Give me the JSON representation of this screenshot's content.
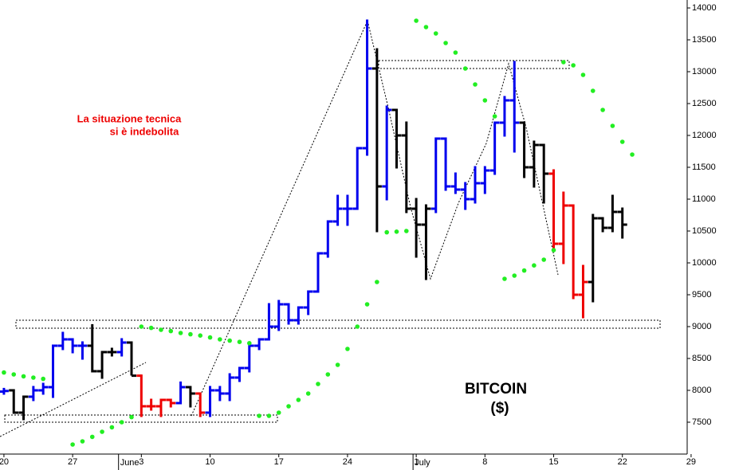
{
  "chart_data": {
    "type": "ohlc",
    "title": "BITCOIN",
    "subtitle": "($)",
    "annotations": [
      "La situazione tecnica",
      "si è indebolita"
    ],
    "ylim": [
      7000,
      14125
    ],
    "yticks": [
      7500,
      8000,
      8500,
      9000,
      9500,
      10000,
      10500,
      11000,
      11500,
      12000,
      12500,
      13000,
      13500,
      14000
    ],
    "xlim": [
      -0.4,
      69.6
    ],
    "xticks": [
      {
        "value": 0,
        "label": "20"
      },
      {
        "value": 7,
        "label": "27"
      },
      {
        "value": 14,
        "label": "3"
      },
      {
        "value": 21,
        "label": "10"
      },
      {
        "value": 28,
        "label": "17"
      },
      {
        "value": 35,
        "label": "24"
      },
      {
        "value": 42,
        "label": "1"
      },
      {
        "value": 49,
        "label": "8"
      },
      {
        "value": 56,
        "label": "15"
      },
      {
        "value": 63,
        "label": "22"
      },
      {
        "value": 70,
        "label": "29"
      }
    ],
    "months": [
      {
        "value": 12,
        "label": "June"
      },
      {
        "value": 42,
        "label": "July"
      }
    ],
    "x": [
      0,
      1,
      2,
      3,
      4,
      5,
      6,
      7,
      8,
      9,
      10,
      11,
      12,
      13,
      14,
      15,
      16,
      17,
      18,
      19,
      20,
      21,
      22,
      23,
      24,
      25,
      26,
      27,
      28,
      29,
      30,
      31,
      32,
      33,
      34,
      35,
      36,
      37,
      38,
      39,
      40,
      41,
      42,
      43,
      44,
      45,
      46,
      47,
      48,
      49,
      50,
      51,
      52,
      53,
      54,
      55,
      56,
      57,
      58,
      59,
      60,
      61,
      62,
      63
    ],
    "open": [
      7980,
      8000,
      7650,
      7900,
      8000,
      8050,
      8700,
      8800,
      8700,
      8700,
      8300,
      8600,
      8600,
      8750,
      8230,
      7750,
      7750,
      7850,
      7800,
      8050,
      7950,
      7650,
      8000,
      7950,
      8200,
      8350,
      8700,
      8800,
      9000,
      9350,
      9100,
      9300,
      9550,
      10150,
      10650,
      10850,
      10850,
      11800,
      13050,
      11200,
      12400,
      12000,
      10850,
      10600,
      10850,
      11950,
      11200,
      11150,
      11000,
      11250,
      11450,
      12200,
      12550,
      12200,
      11500,
      11850,
      11400,
      10300,
      10900,
      9500,
      9700,
      10700,
      10550,
      10800
    ],
    "high": [
      8020,
      8000,
      7900,
      8050,
      8100,
      8700,
      8900,
      8800,
      8750,
      9020,
      8600,
      8650,
      8800,
      8750,
      8230,
      7850,
      7850,
      7850,
      8120,
      8050,
      7950,
      8050,
      8050,
      8250,
      8350,
      8700,
      8800,
      9350,
      9400,
      9350,
      9300,
      9550,
      10150,
      10650,
      11050,
      11050,
      11800,
      13800,
      13350,
      12450,
      12400,
      12200,
      11000,
      10900,
      11950,
      11950,
      11400,
      11250,
      11500,
      11500,
      12200,
      12600,
      13150,
      12200,
      11900,
      11850,
      11450,
      11100,
      10900,
      9950,
      10750,
      10700,
      11050,
      10850
    ],
    "low": [
      7950,
      7650,
      7550,
      7850,
      7950,
      7900,
      8650,
      8600,
      8500,
      8300,
      8200,
      8550,
      8550,
      8250,
      7600,
      7700,
      7600,
      7750,
      7800,
      7750,
      7600,
      7600,
      7850,
      7850,
      8150,
      8300,
      8650,
      8800,
      8950,
      9050,
      9050,
      9200,
      9550,
      10100,
      10600,
      10600,
      10850,
      11700,
      10500,
      11000,
      11500,
      10800,
      10100,
      9750,
      10800,
      11150,
      11100,
      10850,
      10950,
      11100,
      11400,
      12000,
      11750,
      11350,
      11200,
      10950,
      10250,
      10000,
      9450,
      9150,
      9400,
      10500,
      10500,
      10400
    ],
    "close": [
      7990,
      7650,
      7900,
      8000,
      8050,
      8700,
      8800,
      8700,
      8700,
      8300,
      8600,
      8600,
      8750,
      8230,
      7750,
      7750,
      7850,
      7800,
      8050,
      7950,
      7650,
      8000,
      7950,
      8200,
      8350,
      8700,
      8800,
      9000,
      9350,
      9100,
      9300,
      9550,
      10150,
      10650,
      10850,
      10850,
      11800,
      13050,
      11200,
      12400,
      12000,
      10850,
      10600,
      10850,
      11950,
      11200,
      11150,
      11000,
      11250,
      11450,
      12200,
      12550,
      12200,
      11500,
      11850,
      11400,
      10300,
      10900,
      9500,
      9700,
      10700,
      10550,
      10800,
      10600
    ],
    "bar_colors": [
      "#0000ee",
      "#000000",
      "#000000",
      "#0000ee",
      "#0000ee",
      "#0000ee",
      "#0000ee",
      "#0000ee",
      "#0000ee",
      "#000000",
      "#000000",
      "#000000",
      "#0000ee",
      "#000000",
      "#ee0000",
      "#ee0000",
      "#ee0000",
      "#ee0000",
      "#0000ee",
      "#000000",
      "#ee0000",
      "#0000ee",
      "#0000ee",
      "#0000ee",
      "#0000ee",
      "#0000ee",
      "#0000ee",
      "#0000ee",
      "#0000ee",
      "#0000ee",
      "#0000ee",
      "#0000ee",
      "#0000ee",
      "#0000ee",
      "#0000ee",
      "#0000ee",
      "#0000ee",
      "#0000ee",
      "#000000",
      "#0000ee",
      "#000000",
      "#000000",
      "#000000",
      "#000000",
      "#0000ee",
      "#0000ee",
      "#0000ee",
      "#0000ee",
      "#0000ee",
      "#0000ee",
      "#0000ee",
      "#0000ee",
      "#0000ee",
      "#000000",
      "#000000",
      "#000000",
      "#ee0000",
      "#ee0000",
      "#ee0000",
      "#ee0000",
      "#000000",
      "#000000",
      "#000000",
      "#000000"
    ],
    "sar": {
      "color": "#22ee22",
      "x": [
        0,
        1,
        2,
        3,
        4,
        7,
        8,
        9,
        10,
        11,
        12,
        13,
        14,
        15,
        16,
        17,
        18,
        19,
        20,
        21,
        22,
        23,
        24,
        25,
        26,
        27,
        28,
        29,
        30,
        31,
        32,
        33,
        34,
        35,
        36,
        37,
        38,
        39,
        40,
        41,
        42,
        43,
        44,
        45,
        46,
        47,
        48,
        49,
        50,
        51,
        52,
        53,
        54,
        55,
        56,
        57,
        58,
        59,
        60,
        61,
        62,
        63,
        64
      ],
      "values": [
        8280,
        8250,
        8220,
        8200,
        8180,
        7150,
        7200,
        7270,
        7350,
        7420,
        7500,
        7580,
        9000,
        8980,
        8950,
        8930,
        8900,
        8880,
        8860,
        8830,
        8800,
        8780,
        8760,
        8740,
        7600,
        7600,
        7650,
        7750,
        7850,
        7950,
        8100,
        8250,
        8400,
        8650,
        9000,
        9350,
        9700,
        10480,
        10490,
        10500,
        13800,
        13700,
        13600,
        13450,
        13300,
        13050,
        12800,
        12550,
        12300,
        9750,
        9800,
        9880,
        9960,
        10050,
        10200,
        13150,
        13100,
        12950,
        12700,
        12400,
        12150,
        11900,
        11700
      ]
    }
  }
}
